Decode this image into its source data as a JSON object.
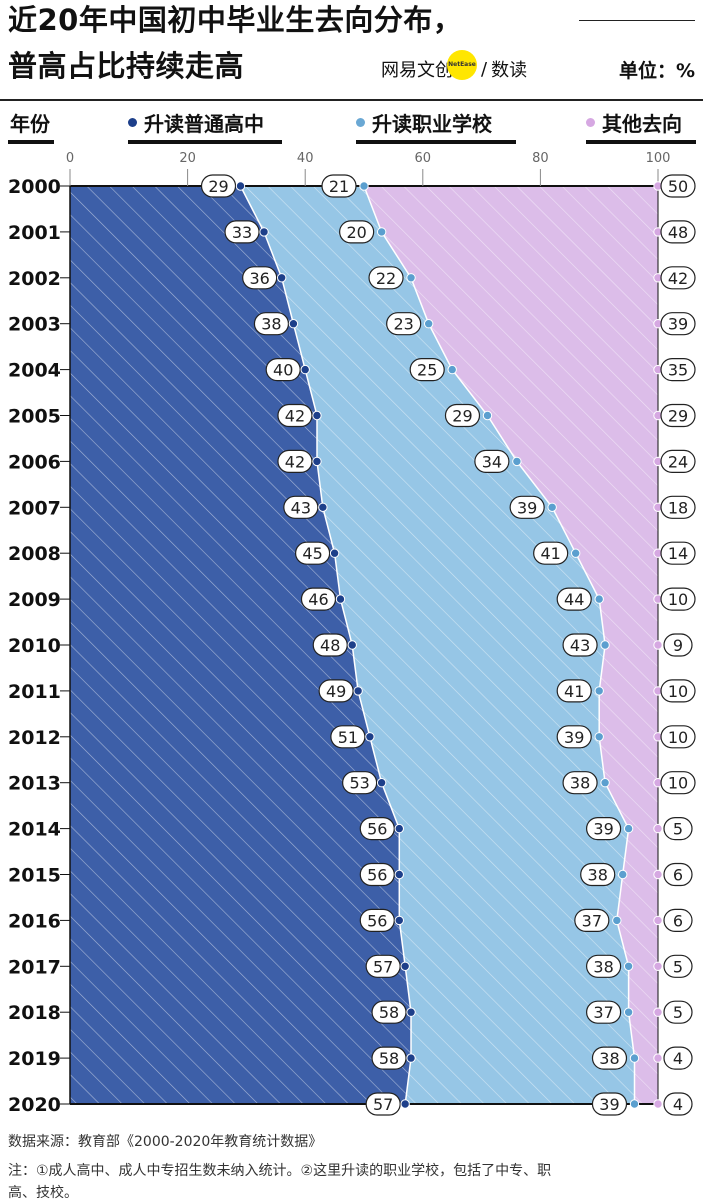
{
  "header": {
    "title_line1": "近20年中国初中毕业生去向分布，",
    "title_line2": "普高占比持续走高",
    "brand_left": "网易文创",
    "brand_badge": "NetEase",
    "brand_sep": "/",
    "brand_right": "数读",
    "unit": "单位：%"
  },
  "legend": {
    "year_label": "年份",
    "items": [
      {
        "label": "升读普通高中",
        "color": "#1d3f8a"
      },
      {
        "label": "升读职业学校",
        "color": "#6aa8d4"
      },
      {
        "label": "其他去向",
        "color": "#d6a8e2"
      }
    ]
  },
  "colors": {
    "high_school_fill": "#3d5fa8",
    "vocational_fill": "#96c6e6",
    "other_fill": "#dcbde9",
    "high_school_dot": "#1d3f8a",
    "vocational_dot": "#5b9fcf",
    "other_dot": "#d6a8e2"
  },
  "chart_data": {
    "type": "area",
    "orientation": "horizontal",
    "stacked": true,
    "categories": [
      "2000",
      "2001",
      "2002",
      "2003",
      "2004",
      "2005",
      "2006",
      "2007",
      "2008",
      "2009",
      "2010",
      "2011",
      "2012",
      "2013",
      "2014",
      "2015",
      "2016",
      "2017",
      "2018",
      "2019",
      "2020"
    ],
    "series": [
      {
        "name": "升读普通高中",
        "values": [
          29,
          33,
          36,
          38,
          40,
          42,
          42,
          43,
          45,
          46,
          48,
          49,
          51,
          53,
          56,
          56,
          56,
          57,
          58,
          58,
          57
        ]
      },
      {
        "name": "升读职业学校",
        "values": [
          21,
          20,
          22,
          23,
          25,
          29,
          34,
          39,
          41,
          44,
          43,
          41,
          39,
          38,
          39,
          38,
          37,
          38,
          37,
          38,
          39
        ]
      },
      {
        "name": "其他去向",
        "values": [
          50,
          48,
          42,
          39,
          35,
          29,
          24,
          18,
          14,
          10,
          9,
          10,
          10,
          10,
          5,
          6,
          6,
          5,
          5,
          4,
          4
        ]
      }
    ],
    "xlim": [
      0,
      100
    ],
    "xticks": [
      "0",
      "20",
      "40",
      "60",
      "80",
      "100"
    ],
    "ylabel": "年份"
  },
  "footer": {
    "source": "数据来源：教育部《2000-2020年教育统计数据》",
    "note_line1": "注：①成人高中、成人中专招生数未纳入统计。②这里升读的职业学校，包括了中专、职",
    "note_line2": "高、技校。"
  }
}
